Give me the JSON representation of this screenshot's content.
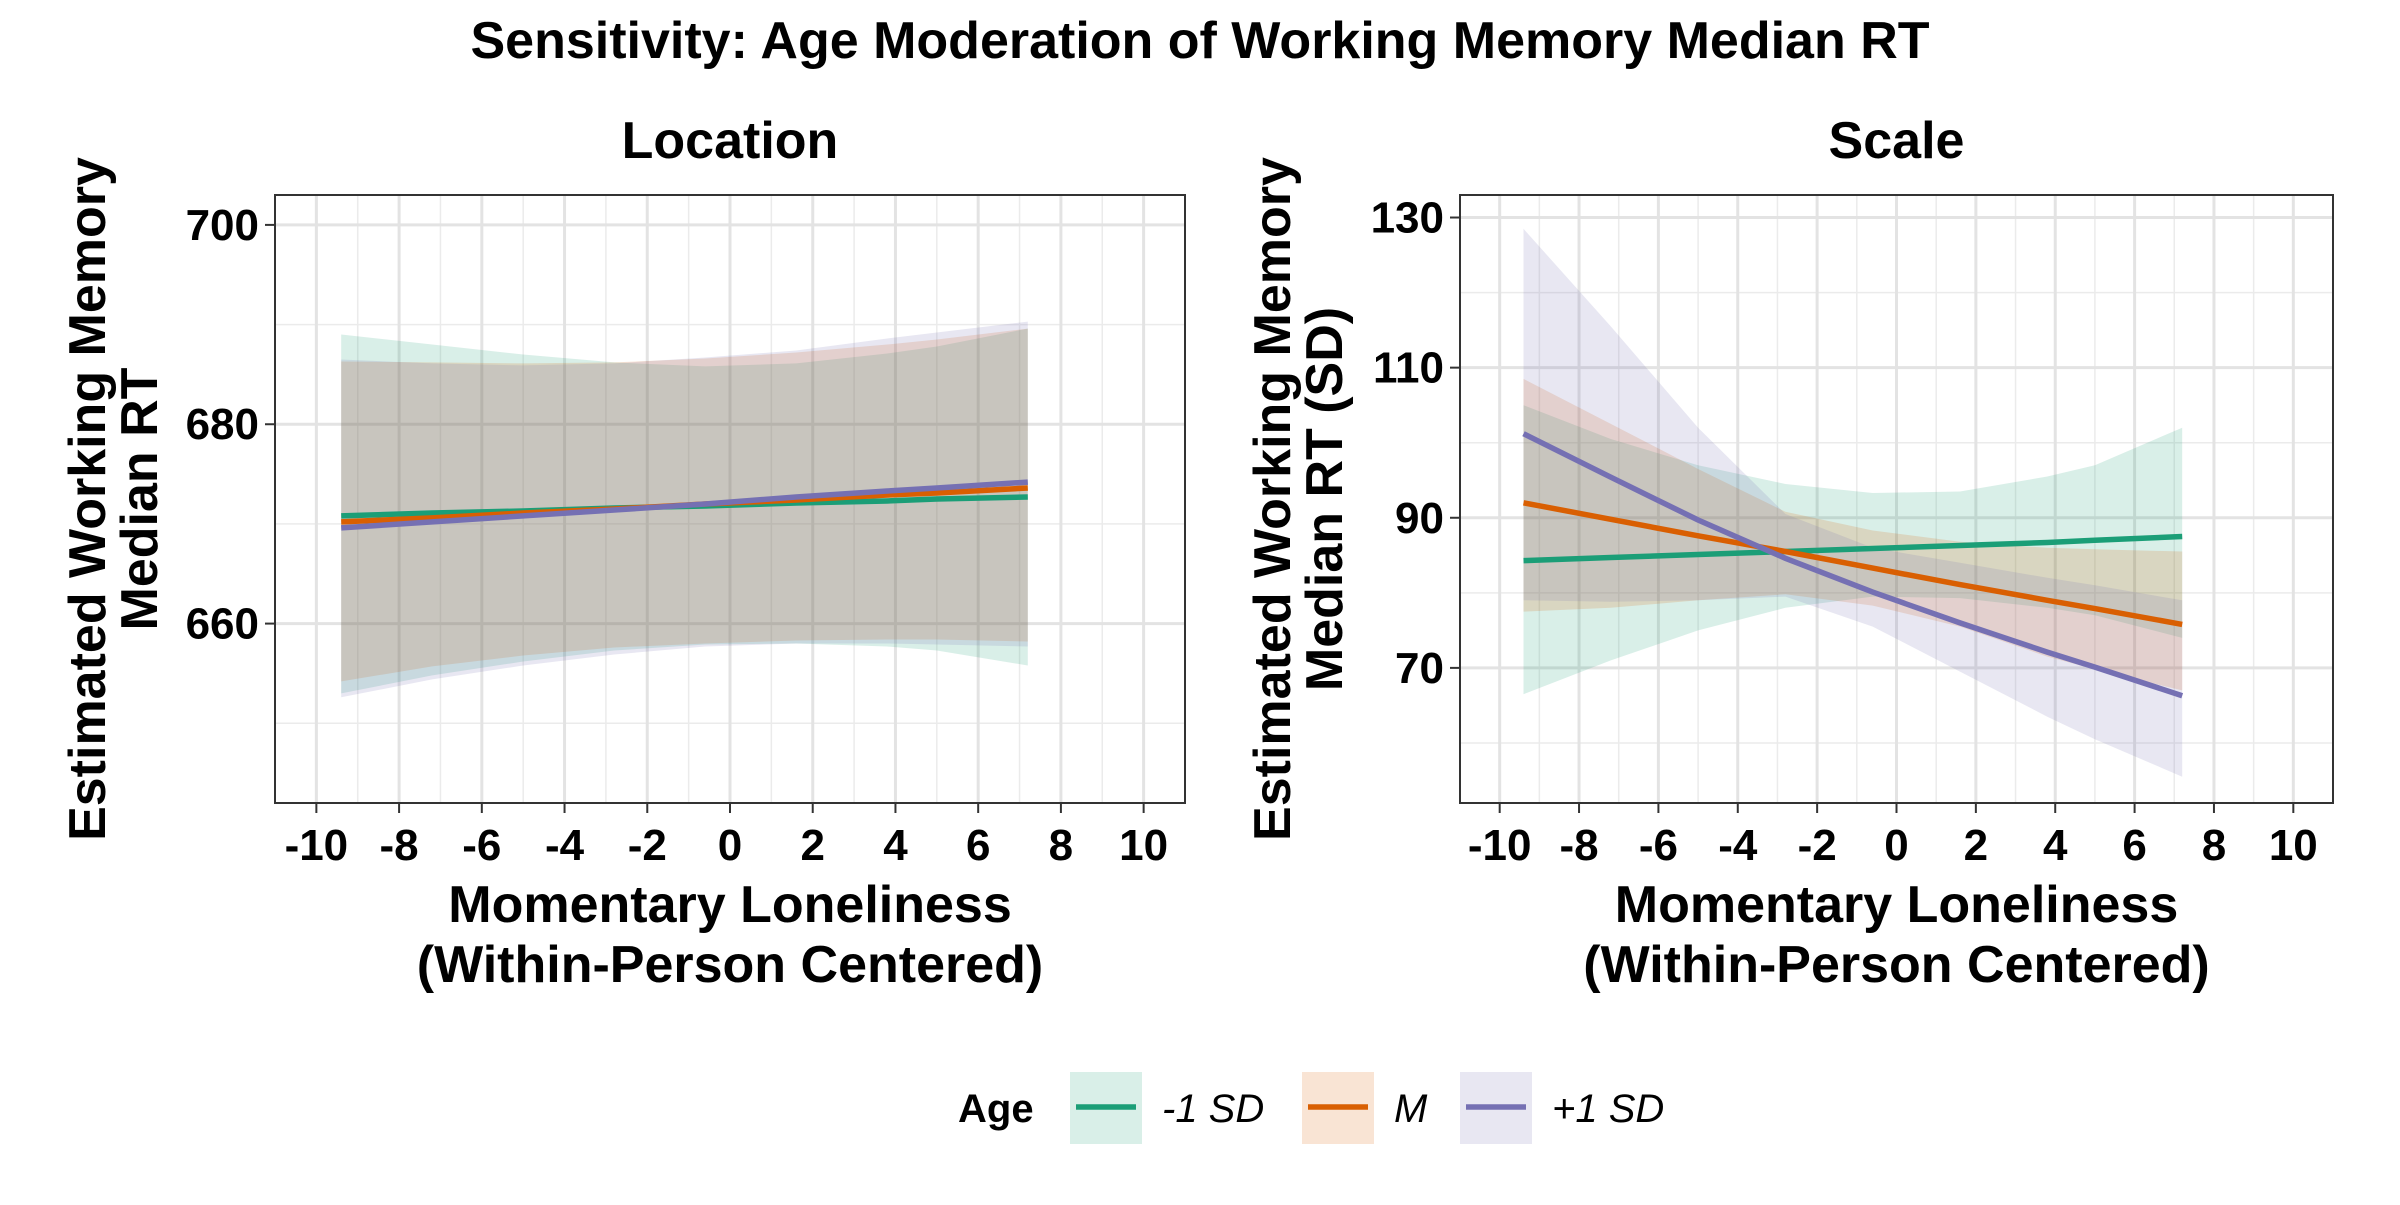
{
  "title": "Sensitivity: Age Moderation of Working Memory Median RT",
  "colors": {
    "minus1sd": "#1b9e77",
    "mean": "#d95f02",
    "plus1sd": "#7570b3"
  },
  "legend": {
    "title": "Age",
    "items": [
      {
        "label": "-1 SD",
        "color": "#1b9e77"
      },
      {
        "label": "M",
        "color": "#d95f02"
      },
      {
        "label": "+1 SD",
        "color": "#7570b3"
      }
    ]
  },
  "chart_data": [
    {
      "type": "line",
      "facet": "Location",
      "xlabel": "Momentary Loneliness\n(Within-Person Centered)",
      "ylabel": "Estimated Working Memory\nMedian RT",
      "xlim": [
        -11,
        11
      ],
      "ylim": [
        642,
        703
      ],
      "xticks": [
        -10,
        -8,
        -6,
        -4,
        -2,
        0,
        2,
        4,
        6,
        8,
        10
      ],
      "yticks": [
        660,
        680,
        700
      ],
      "grid": true,
      "x": [
        -9.4,
        -7.2,
        -5.0,
        -2.8,
        -0.6,
        1.6,
        3.8,
        5.0,
        7.2
      ],
      "series": [
        {
          "name": "-1 SD",
          "color": "#1b9e77",
          "values": [
            670.8,
            671.1,
            671.3,
            671.6,
            671.8,
            672.1,
            672.3,
            672.5,
            672.7
          ],
          "lower": [
            653.0,
            654.8,
            656.2,
            657.3,
            657.9,
            658.0,
            657.7,
            657.3,
            655.8
          ],
          "upper": [
            689.0,
            688.0,
            687.0,
            686.2,
            685.8,
            686.1,
            687.1,
            687.8,
            689.6
          ]
        },
        {
          "name": "M",
          "color": "#d95f02",
          "values": [
            670.2,
            670.6,
            671.1,
            671.5,
            672.0,
            672.4,
            672.9,
            673.1,
            673.6
          ],
          "lower": [
            654.2,
            655.7,
            656.8,
            657.6,
            658.0,
            658.3,
            658.4,
            658.4,
            658.2
          ],
          "upper": [
            686.3,
            686.2,
            686.1,
            686.2,
            686.6,
            687.2,
            688.0,
            688.5,
            689.6
          ]
        },
        {
          "name": "+1 SD",
          "color": "#7570b3",
          "values": [
            669.6,
            670.2,
            670.8,
            671.4,
            672.0,
            672.7,
            673.3,
            673.6,
            674.2
          ],
          "lower": [
            652.6,
            654.4,
            655.8,
            656.9,
            657.7,
            658.0,
            658.0,
            657.9,
            657.7
          ],
          "upper": [
            686.5,
            686.1,
            685.9,
            686.1,
            686.7,
            687.4,
            688.6,
            689.2,
            690.3
          ]
        }
      ]
    },
    {
      "type": "line",
      "facet": "Scale",
      "xlabel": "Momentary Loneliness\n(Within-Person Centered)",
      "ylabel": "Estimated Working Memory\nMedian RT (SD)",
      "xlim": [
        -11,
        11
      ],
      "ylim": [
        52,
        133
      ],
      "xticks": [
        -10,
        -8,
        -6,
        -4,
        -2,
        0,
        2,
        4,
        6,
        8,
        10
      ],
      "yticks": [
        70,
        90,
        110,
        130
      ],
      "grid": true,
      "x": [
        -9.4,
        -7.2,
        -5.0,
        -2.8,
        -0.6,
        1.6,
        3.8,
        5.0,
        7.2
      ],
      "series": [
        {
          "name": "-1 SD",
          "color": "#1b9e77",
          "values": [
            84.3,
            84.7,
            85.1,
            85.5,
            85.9,
            86.3,
            86.7,
            87.0,
            87.5
          ],
          "lower": [
            66.5,
            71.0,
            75.0,
            78.0,
            79.5,
            79.3,
            78.0,
            77.0,
            74.0
          ],
          "upper": [
            105.0,
            100.5,
            97.0,
            94.5,
            93.3,
            93.5,
            95.5,
            97.0,
            102.0
          ]
        },
        {
          "name": "M",
          "color": "#d95f02",
          "values": [
            92.0,
            89.8,
            87.6,
            85.5,
            83.3,
            81.1,
            79.0,
            77.9,
            75.8
          ],
          "lower": [
            77.5,
            78.0,
            79.0,
            79.8,
            78.3,
            75.5,
            71.5,
            69.8,
            67.0
          ],
          "upper": [
            108.5,
            102.5,
            96.5,
            90.8,
            88.3,
            86.8,
            86.0,
            85.8,
            85.5
          ]
        },
        {
          "name": "+1 SD",
          "color": "#7570b3",
          "values": [
            101.2,
            95.4,
            89.7,
            84.6,
            80.1,
            76.0,
            72.1,
            70.1,
            66.3
          ],
          "lower": [
            79.0,
            78.8,
            79.0,
            79.5,
            75.5,
            69.5,
            63.5,
            60.5,
            55.5
          ],
          "upper": [
            128.5,
            115.5,
            102.0,
            90.5,
            86.0,
            84.0,
            82.0,
            81.0,
            79.0
          ]
        }
      ]
    }
  ]
}
